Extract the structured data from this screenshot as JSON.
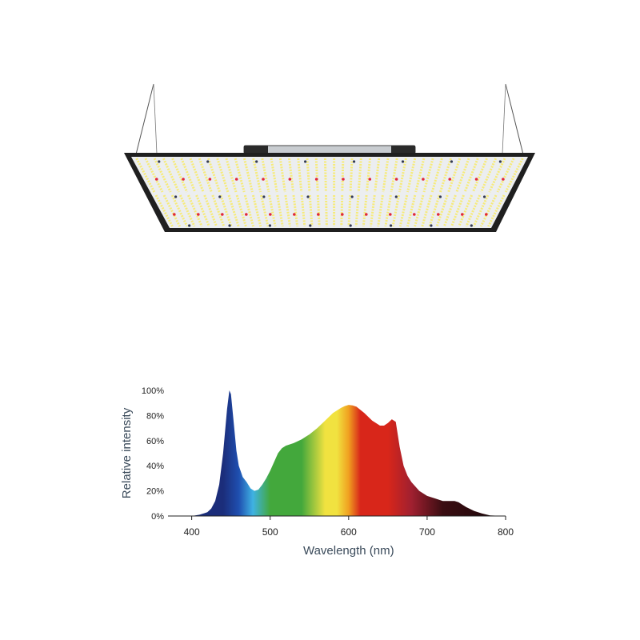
{
  "product": {
    "name": "led-grow-light-panel",
    "colors": {
      "frame": "#1f1f1f",
      "panel": "#eceef0",
      "white_led": "#f6eb7a",
      "red_led": "#e0283a",
      "bar": "#c8ccd0"
    }
  },
  "chart_data": {
    "type": "area",
    "title": "",
    "xlabel": "Wavelength (nm)",
    "ylabel": "Relative intensity",
    "xlim": [
      380,
      800
    ],
    "ylim": [
      0,
      100
    ],
    "x_ticks": [
      400,
      500,
      600,
      700,
      800
    ],
    "y_ticks": [
      0,
      20,
      40,
      60,
      80,
      100
    ],
    "y_tick_labels": [
      "0%",
      "20%",
      "40%",
      "60%",
      "80%",
      "100%"
    ],
    "grid": false,
    "legend": "none",
    "series": [
      {
        "x": [
          380,
          400,
          410,
          420,
          425,
          430,
          435,
          440,
          445,
          448,
          450,
          453,
          457,
          460,
          465,
          470,
          475,
          480,
          485,
          490,
          495,
          500,
          505,
          510,
          515,
          520,
          525,
          530,
          540,
          550,
          560,
          570,
          580,
          590,
          595,
          600,
          605,
          610,
          620,
          630,
          640,
          645,
          650,
          655,
          660,
          665,
          670,
          675,
          680,
          690,
          700,
          710,
          720,
          730,
          735,
          740,
          745,
          750,
          760,
          770,
          780,
          800
        ],
        "y": [
          0,
          0,
          1,
          3,
          6,
          12,
          25,
          50,
          85,
          100,
          97,
          78,
          52,
          40,
          31,
          27,
          22,
          20,
          21,
          25,
          30,
          36,
          43,
          50,
          54,
          56,
          57,
          58,
          61,
          65,
          70,
          76,
          82,
          86,
          87.5,
          88.5,
          88,
          87,
          82,
          76,
          72,
          72,
          74,
          77,
          75,
          55,
          40,
          32,
          27,
          20,
          16,
          14,
          12,
          12,
          12,
          11,
          9,
          7,
          4,
          2,
          0.5,
          0
        ]
      }
    ],
    "colors": {
      "violet": "#1b2d7a",
      "blue": "#1f4fb0",
      "cyan": "#3fb2e3",
      "green": "#43a83c",
      "yellow": "#f1e240",
      "orange": "#f0a020",
      "red": "#d8261a",
      "dark_red": "#a02030",
      "far_red": "#3a0d12",
      "axis": "#222222"
    }
  }
}
